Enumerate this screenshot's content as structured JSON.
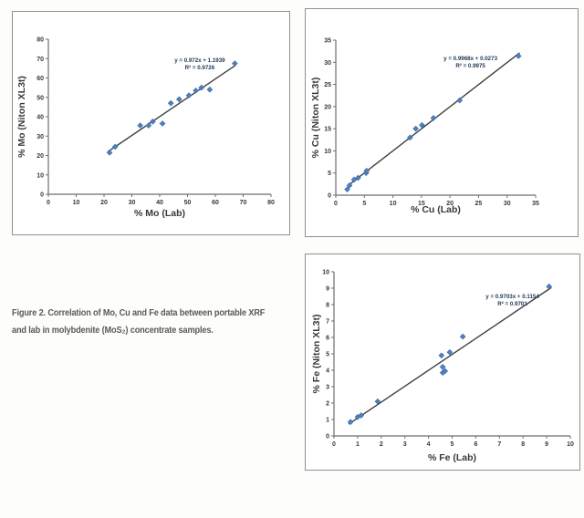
{
  "caption": {
    "line1": "Figure 2. Correlation of Mo, Cu and Fe data between portable XRF",
    "line2": "and lab in molybdenite (MoS₂) concentrate samples."
  },
  "colors": {
    "marker": "#4f81bd",
    "marker_edge": "#3a6ba5",
    "trend": "#3f3f3f",
    "axis": "#6e6e6e",
    "panel_border": "#8f8f8f",
    "caption_text": "#5e5a52",
    "equation_text": "#203a57",
    "tick_text": "#3b3834"
  },
  "chart_data": [
    {
      "type": "scatter",
      "title": "",
      "xlabel": "% Mo (Lab)",
      "ylabel": "% Mo (Niton XL3t)",
      "xlim": [
        0,
        80
      ],
      "ylim": [
        0,
        80
      ],
      "xtick_step": 10,
      "ytick_step": 10,
      "grid": false,
      "legend": "none",
      "points": [
        [
          22,
          21.5
        ],
        [
          24,
          24.5
        ],
        [
          33,
          35.5
        ],
        [
          36,
          35.5
        ],
        [
          37.5,
          37.5
        ],
        [
          41,
          36.5
        ],
        [
          44,
          47
        ],
        [
          47,
          49
        ],
        [
          50.5,
          51
        ],
        [
          53,
          53.5
        ],
        [
          55,
          55
        ],
        [
          58,
          54
        ],
        [
          67,
          67.5
        ]
      ],
      "trendline": {
        "slope": 0.972,
        "intercept": 1.1939,
        "x_start": 21.3,
        "x_end": 67.2
      },
      "equation": "y = 0.972x + 1.1939",
      "r_squared": "R² = 0.9726",
      "annotation_pos": {
        "fx": 0.68,
        "fy": 0.147
      }
    },
    {
      "type": "scatter",
      "title": "",
      "xlabel": "% Cu (Lab)",
      "ylabel": "% Cu (Niton XL3t)",
      "xlim": [
        0,
        35
      ],
      "ylim": [
        0,
        35
      ],
      "xtick_step": 5,
      "ytick_step": 5,
      "grid": false,
      "legend": "none",
      "points": [
        [
          2,
          1.3
        ],
        [
          2.4,
          2.2
        ],
        [
          3.2,
          3.5
        ],
        [
          3.9,
          3.9
        ],
        [
          5.3,
          5.0
        ],
        [
          5.4,
          5.5
        ],
        [
          13,
          13
        ],
        [
          14,
          15
        ],
        [
          15.1,
          15.8
        ],
        [
          17.1,
          17.4
        ],
        [
          21.7,
          21.4
        ],
        [
          32,
          31.4
        ]
      ],
      "trendline": {
        "slope": 0.9968,
        "intercept": 0.0273,
        "x_start": 2.15,
        "x_end": 32.2
      },
      "equation": "y = 0.9968x + 0.0273",
      "r_squared": "R² = 0.9975",
      "annotation_pos": {
        "fx": 0.674,
        "fy": 0.13
      }
    },
    {
      "type": "scatter",
      "title": "",
      "xlabel": "% Fe (Lab)",
      "ylabel": "% Fe (Niton XL3t)",
      "xlim": [
        0,
        10
      ],
      "ylim": [
        0,
        10
      ],
      "xtick_step": 1,
      "ytick_step": 1,
      "grid": false,
      "legend": "none",
      "points": [
        [
          0.7,
          0.85
        ],
        [
          1.0,
          1.15
        ],
        [
          1.15,
          1.25
        ],
        [
          1.85,
          2.1
        ],
        [
          4.55,
          4.9
        ],
        [
          4.6,
          4.2
        ],
        [
          4.6,
          3.85
        ],
        [
          4.7,
          3.95
        ],
        [
          4.9,
          5.1
        ],
        [
          5.45,
          6.05
        ],
        [
          9.1,
          9.1
        ]
      ],
      "trendline": {
        "slope": 0.9703,
        "intercept": 0.1154,
        "x_start": 0.62,
        "x_end": 9.2
      },
      "equation": "y = 0.9703x + 0.1154",
      "r_squared": "R² = 0.9701",
      "annotation_pos": {
        "fx": 0.755,
        "fy": 0.16
      }
    }
  ]
}
